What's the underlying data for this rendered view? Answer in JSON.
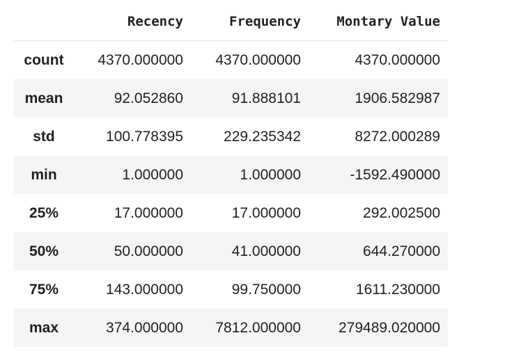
{
  "table": {
    "columns": [
      "",
      "Recency",
      "Frequency",
      "Montary Value"
    ],
    "rows": [
      {
        "label": "count",
        "values": [
          "4370.000000",
          "4370.000000",
          "4370.000000"
        ]
      },
      {
        "label": "mean",
        "values": [
          "92.052860",
          "91.888101",
          "1906.582987"
        ]
      },
      {
        "label": "std",
        "values": [
          "100.778395",
          "229.235342",
          "8272.000289"
        ]
      },
      {
        "label": "min",
        "values": [
          "1.000000",
          "1.000000",
          "-1592.490000"
        ]
      },
      {
        "label": "25%",
        "values": [
          "17.000000",
          "17.000000",
          "292.002500"
        ]
      },
      {
        "label": "50%",
        "values": [
          "50.000000",
          "41.000000",
          "644.270000"
        ]
      },
      {
        "label": "75%",
        "values": [
          "143.000000",
          "99.750000",
          "1611.230000"
        ]
      },
      {
        "label": "max",
        "values": [
          "374.000000",
          "7812.000000",
          "279489.020000"
        ]
      }
    ]
  }
}
